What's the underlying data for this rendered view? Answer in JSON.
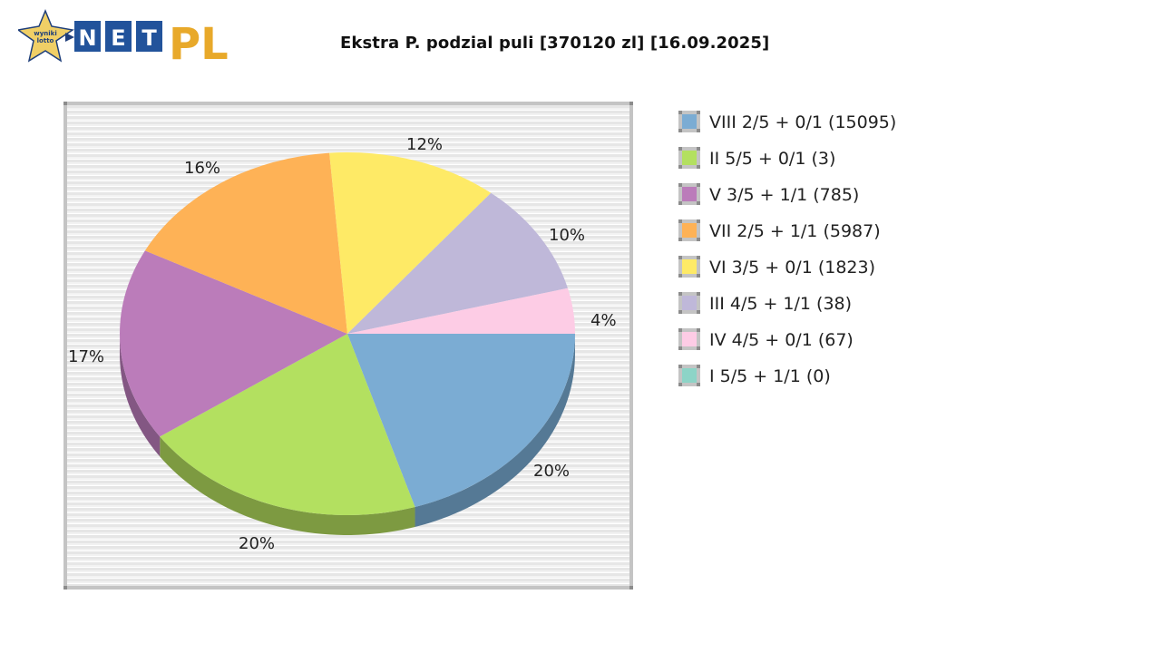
{
  "header": {
    "logo": {
      "badge_text_line1": "wyniki",
      "badge_text_line2": "lotto",
      "letters": [
        "N",
        "E",
        "T"
      ],
      "suffix": "PL",
      "colors": {
        "star": "#f0cf66",
        "box": "#22539b",
        "suffix": "#e8a92a"
      }
    },
    "title": "Ekstra P. podzial puli [370120 zl] [16.09.2025]"
  },
  "chart_data": {
    "type": "pie",
    "title": "Ekstra P. podzial puli [370120 zl] [16.09.2025]",
    "style": "3d-ellipse",
    "categories": [
      "VIII 2/5 + 0/1 (15095)",
      "II 5/5 + 0/1 (3)",
      "V 3/5 + 1/1 (785)",
      "VII 2/5 + 1/1 (5987)",
      "VI 3/5 + 0/1 (1823)",
      "III 4/5 + 1/1 (38)",
      "IV 4/5 + 0/1 (67)",
      "I 5/5 + 1/1 (0)"
    ],
    "values": [
      20,
      20,
      17,
      16,
      12,
      10,
      4,
      0
    ],
    "value_labels": [
      "20%",
      "20%",
      "17%",
      "16%",
      "12%",
      "10%",
      "4%",
      ""
    ],
    "colors": [
      "#7bacd3",
      "#b3e060",
      "#bb7cba",
      "#feb256",
      "#feea66",
      "#bfb8d9",
      "#fdcce5",
      "#8dd4c7"
    ],
    "shade_colors": [
      "#557995",
      "#7d9a41",
      "#835783",
      "#b27d3c",
      "#b2a447",
      "#868198",
      "#b18fa0",
      "#63948b"
    ],
    "legend_position": "right",
    "grid": false
  },
  "legend": {
    "items": [
      {
        "label": "VIII 2/5 + 0/1 (15095)",
        "color": "#7bacd3"
      },
      {
        "label": "II 5/5 + 0/1 (3)",
        "color": "#b3e060"
      },
      {
        "label": "V 3/5 + 1/1 (785)",
        "color": "#bb7cba"
      },
      {
        "label": "VII 2/5 + 1/1 (5987)",
        "color": "#feb256"
      },
      {
        "label": "VI 3/5 + 0/1 (1823)",
        "color": "#feea66"
      },
      {
        "label": "III 4/5 + 1/1 (38)",
        "color": "#bfb8d9"
      },
      {
        "label": "IV 4/5 + 0/1 (67)",
        "color": "#fdcce5"
      },
      {
        "label": "I 5/5 + 1/1 (0)",
        "color": "#8dd4c7"
      }
    ]
  },
  "slice_labels": [
    {
      "text": "20%"
    },
    {
      "text": "20%"
    },
    {
      "text": "17%"
    },
    {
      "text": "16%"
    },
    {
      "text": "12%"
    },
    {
      "text": "10%"
    },
    {
      "text": "4%"
    }
  ]
}
